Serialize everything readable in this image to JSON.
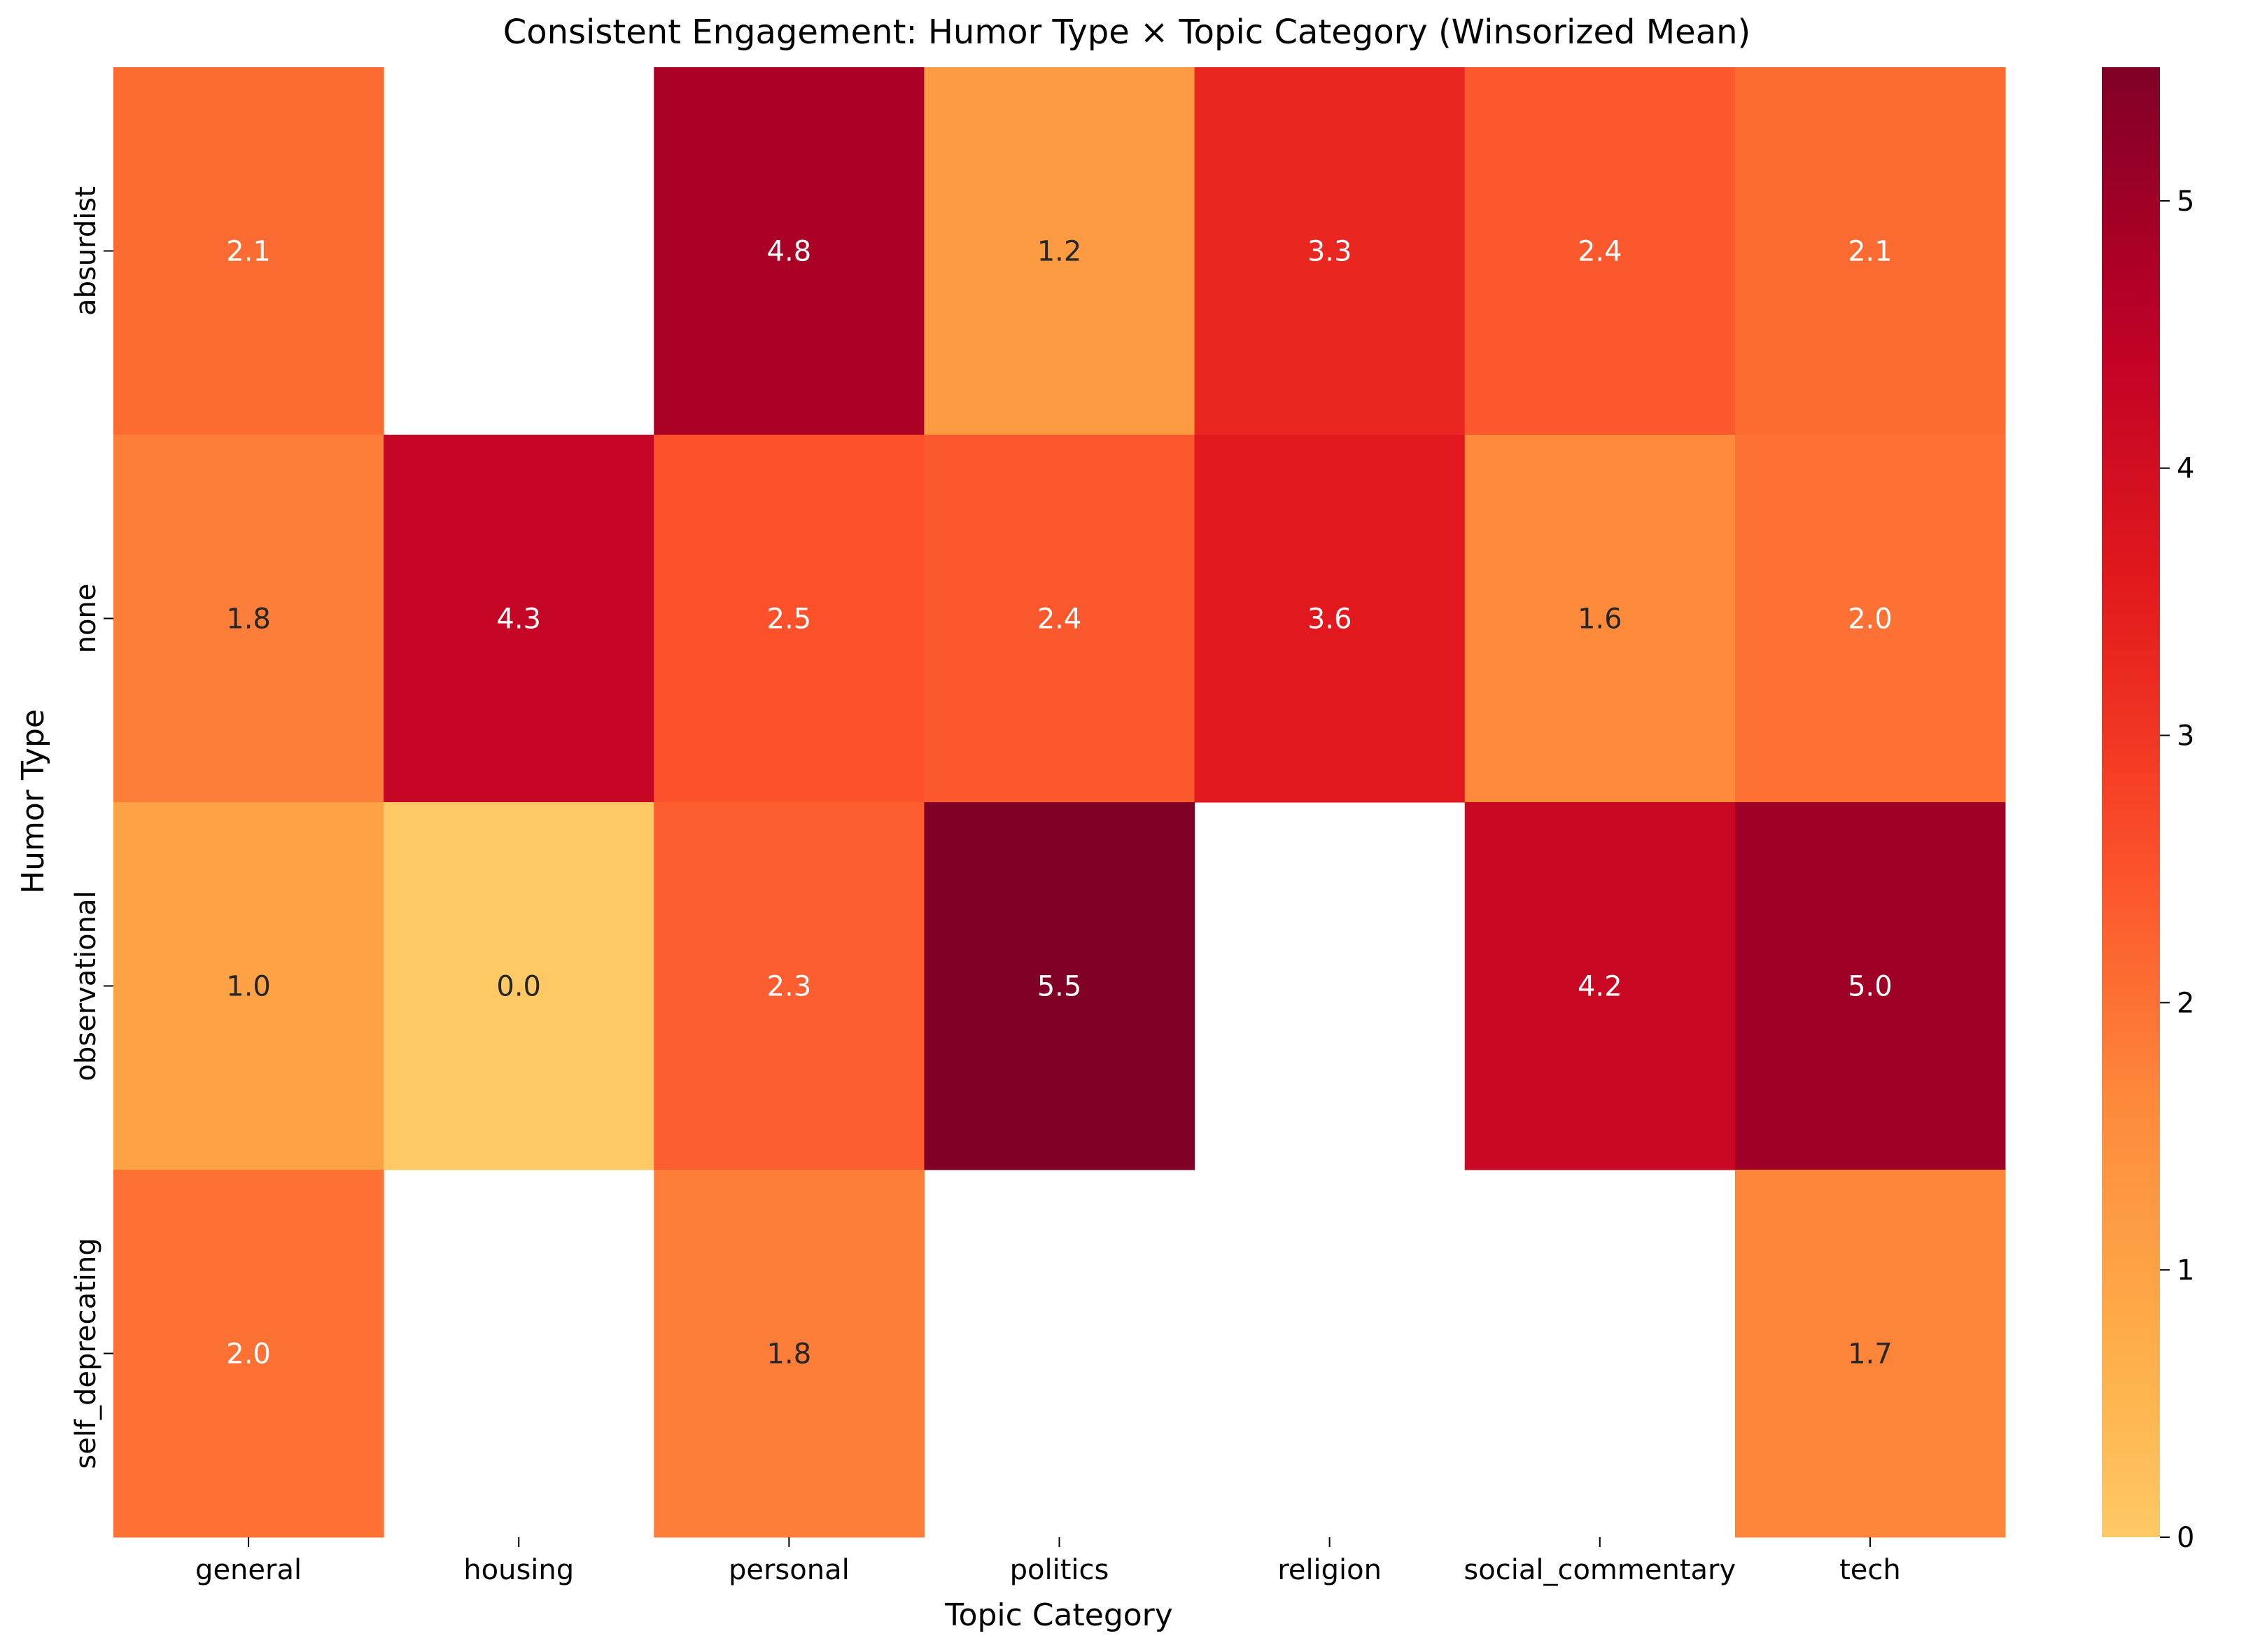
{
  "chart_data": {
    "type": "heatmap",
    "title": "Consistent Engagement: Humor Type × Topic Category (Winsorized Mean)",
    "xlabel": "Topic Category",
    "ylabel": "Humor Type",
    "x_categories": [
      "general",
      "housing",
      "personal",
      "politics",
      "religion",
      "social_commentary",
      "tech"
    ],
    "y_categories": [
      "absurdist",
      "none",
      "observational",
      "self_deprecating"
    ],
    "values": [
      [
        2.1,
        null,
        4.8,
        1.2,
        3.3,
        2.4,
        2.1
      ],
      [
        1.8,
        4.3,
        2.5,
        2.4,
        3.6,
        1.6,
        2.0
      ],
      [
        1.0,
        0.0,
        2.3,
        5.5,
        null,
        4.2,
        5.0
      ],
      [
        2.0,
        null,
        1.8,
        null,
        null,
        null,
        1.7
      ]
    ],
    "value_format": "0.0",
    "colorbar": {
      "min": 0,
      "max": 5.5,
      "ticks": [
        0,
        1,
        2,
        3,
        4,
        5
      ],
      "colormap": "YlOrRd",
      "colormap_range": [
        0.3,
        1.0
      ]
    },
    "missing_cells": "blank",
    "grid": false,
    "legend": "colorbar-right"
  }
}
